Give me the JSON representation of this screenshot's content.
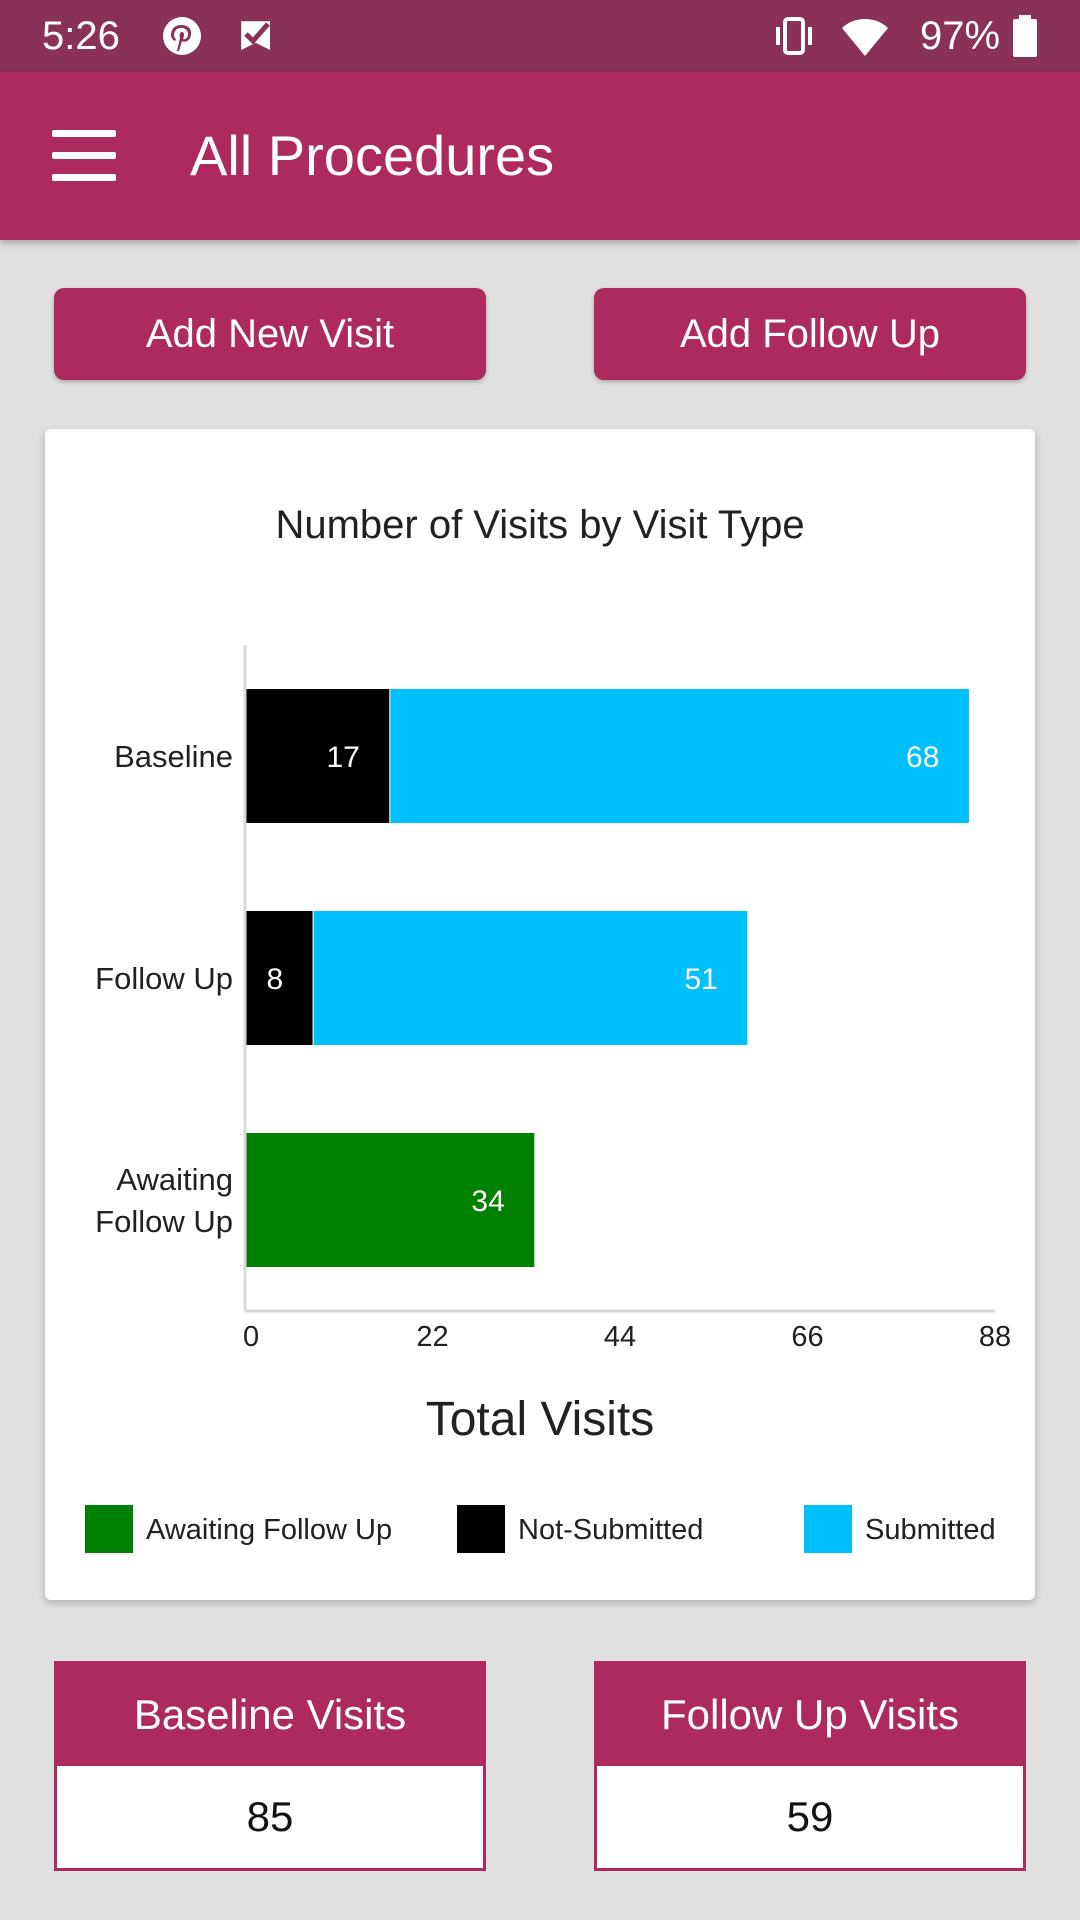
{
  "status_bar": {
    "time": "5:26",
    "battery": "97%",
    "icons": [
      "pinterest-icon",
      "checkmark-notification-icon",
      "vibrate-icon",
      "wifi-icon",
      "battery-icon"
    ]
  },
  "app_bar": {
    "title": "All Procedures",
    "menu_icon": "hamburger-menu-icon"
  },
  "actions": {
    "add_new_visit": "Add New Visit",
    "add_follow_up": "Add Follow Up"
  },
  "colors": {
    "primary": "#ad2a5f",
    "status_bar": "#8a3158",
    "awaiting": "#008000",
    "not_submitted": "#000000",
    "submitted": "#00bfff"
  },
  "chart_data": {
    "type": "bar",
    "orientation": "horizontal",
    "stacked": true,
    "title": "Number of Visits by Visit Type",
    "xlabel": "Total Visits",
    "ylabel": "",
    "categories": [
      "Baseline",
      "Follow Up",
      "Awaiting Follow Up"
    ],
    "series": [
      {
        "name": "Not-Submitted",
        "color": "#000000",
        "values": [
          17,
          8,
          0
        ]
      },
      {
        "name": "Submitted",
        "color": "#00bfff",
        "values": [
          68,
          51,
          0
        ]
      },
      {
        "name": "Awaiting Follow Up",
        "color": "#008000",
        "values": [
          0,
          0,
          34
        ]
      }
    ],
    "legend": [
      {
        "name": "Awaiting Follow Up",
        "color": "#008000"
      },
      {
        "name": "Not-Submitted",
        "color": "#000000"
      },
      {
        "name": "Submitted",
        "color": "#00bfff"
      }
    ],
    "legend_position": "bottom",
    "xlim": [
      0,
      88
    ],
    "xticks": [
      0,
      22,
      44,
      66,
      88
    ],
    "grid": false
  },
  "summary": {
    "baseline_label": "Baseline Visits",
    "baseline_value": "85",
    "follow_up_label": "Follow Up Visits",
    "follow_up_value": "59"
  }
}
